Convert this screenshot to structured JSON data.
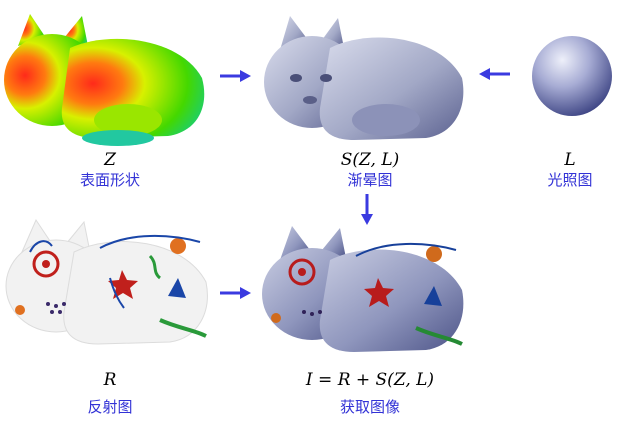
{
  "panels": {
    "surface": {
      "symbol": "Z",
      "caption": "表面形状",
      "colormap": [
        "#ff2a1a",
        "#ffb000",
        "#d8f000",
        "#22c800",
        "#00c8b8"
      ]
    },
    "shading": {
      "symbol": "S(Z, L)",
      "caption": "渐晕图",
      "tint": "#a9aec9"
    },
    "light": {
      "symbol": "L",
      "caption": "光照图",
      "tint": "#6f78b8"
    },
    "reflectance": {
      "symbol": "R",
      "caption": "反射图",
      "tint": "#f2f2f2"
    },
    "image": {
      "symbol": "I = R + S(Z, L)",
      "caption": "获取图像",
      "tint": "#7d8ab3"
    }
  },
  "palette": {
    "arrow": "#3a3ae0",
    "caption": "#3232d6"
  }
}
